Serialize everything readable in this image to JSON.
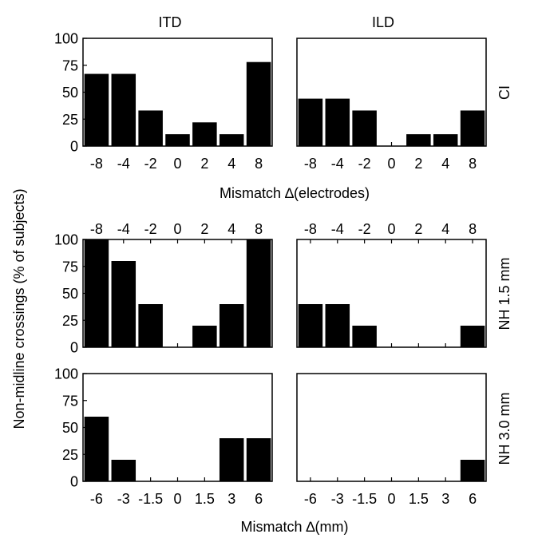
{
  "figure": {
    "y_label": "Non-midline crossings (% of subjects)",
    "col_titles": [
      "ITD",
      "ILD"
    ],
    "row_labels": [
      "CI",
      "NH 1.5 mm",
      "NH 3.0 mm"
    ],
    "x_label_top": "Mismatch ∆(electrodes)",
    "x_label_bottom": "Mismatch ∆(mm)",
    "y_ticks": [
      "0",
      "25",
      "50",
      "75",
      "100"
    ],
    "x_ticks_electrodes": [
      "-8",
      "-4",
      "-2",
      "0",
      "2",
      "4",
      "8"
    ],
    "x_ticks_mm": [
      "-6",
      "-3",
      "-1.5",
      "0",
      "1.5",
      "3",
      "6"
    ]
  },
  "colors": {
    "bar": "#000000",
    "axis": "#000000",
    "background": "#ffffff"
  },
  "chart_data": [
    {
      "type": "bar",
      "panel": "CI - ITD",
      "title": "ITD",
      "categories": [
        "-8",
        "-4",
        "-2",
        "0",
        "2",
        "4",
        "8"
      ],
      "values": [
        67,
        67,
        33,
        11,
        22,
        11,
        78
      ],
      "ylim": [
        0,
        100
      ],
      "xlabel": "Mismatch ∆(electrodes)",
      "ylabel": "Non-midline crossings (% of subjects)"
    },
    {
      "type": "bar",
      "panel": "CI - ILD",
      "title": "ILD",
      "categories": [
        "-8",
        "-4",
        "-2",
        "0",
        "2",
        "4",
        "8"
      ],
      "values": [
        44,
        44,
        33,
        0,
        11,
        11,
        33
      ],
      "ylim": [
        0,
        100
      ],
      "xlabel": "Mismatch ∆(electrodes)",
      "ylabel": ""
    },
    {
      "type": "bar",
      "panel": "NH 1.5 mm - ITD",
      "title": "",
      "categories": [
        "-8",
        "-4",
        "-2",
        "0",
        "2",
        "4",
        "8"
      ],
      "values": [
        100,
        80,
        40,
        0,
        20,
        40,
        100
      ],
      "ylim": [
        0,
        100
      ],
      "xlabel": "",
      "ylabel": "Non-midline crossings (% of subjects)"
    },
    {
      "type": "bar",
      "panel": "NH 1.5 mm - ILD",
      "title": "",
      "categories": [
        "-8",
        "-4",
        "-2",
        "0",
        "2",
        "4",
        "8"
      ],
      "values": [
        40,
        40,
        20,
        0,
        0,
        0,
        20
      ],
      "ylim": [
        0,
        100
      ],
      "xlabel": "",
      "ylabel": ""
    },
    {
      "type": "bar",
      "panel": "NH 3.0 mm - ITD",
      "title": "",
      "categories": [
        "-6",
        "-3",
        "-1.5",
        "0",
        "1.5",
        "3",
        "6"
      ],
      "values": [
        60,
        20,
        0,
        0,
        0,
        40,
        40
      ],
      "ylim": [
        0,
        100
      ],
      "xlabel": "Mismatch ∆(mm)",
      "ylabel": "Non-midline crossings (% of subjects)"
    },
    {
      "type": "bar",
      "panel": "NH 3.0 mm - ILD",
      "title": "",
      "categories": [
        "-6",
        "-3",
        "-1.5",
        "0",
        "1.5",
        "3",
        "6"
      ],
      "values": [
        0,
        0,
        0,
        0,
        0,
        0,
        20
      ],
      "ylim": [
        0,
        100
      ],
      "xlabel": "Mismatch ∆(mm)",
      "ylabel": ""
    }
  ]
}
